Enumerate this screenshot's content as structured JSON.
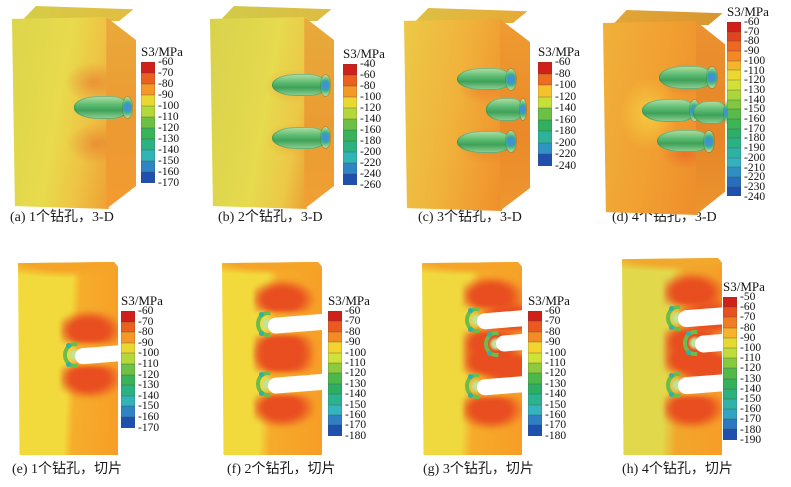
{
  "color_scale_anchors": [
    "#cf2019",
    "#ea5a20",
    "#f58b24",
    "#f5d32f",
    "#cfe238",
    "#8cca3e",
    "#4cb84b",
    "#2daf62",
    "#2bb38f",
    "#33b4c0",
    "#2e7fc4",
    "#2050ae"
  ],
  "chart_data": [
    {
      "id": "a",
      "type": "heatmap",
      "view": "3-D",
      "boreholes": 1,
      "title": "(a) 1个钻孔，3-D",
      "colorbar": {
        "label": "S3/MPa",
        "unit": "MPa",
        "ticks": [
          -60,
          -70,
          -80,
          -90,
          -100,
          -110,
          -120,
          -130,
          -140,
          -150,
          -160,
          -170
        ]
      }
    },
    {
      "id": "b",
      "type": "heatmap",
      "view": "3-D",
      "boreholes": 2,
      "title": "(b) 2个钻孔，3-D",
      "colorbar": {
        "label": "S3/MPa",
        "unit": "MPa",
        "ticks": [
          -40,
          -60,
          -80,
          -100,
          -120,
          -140,
          -160,
          -180,
          -200,
          -220,
          -240,
          -260
        ]
      }
    },
    {
      "id": "c",
      "type": "heatmap",
      "view": "3-D",
      "boreholes": 3,
      "title": "(c) 3个钻孔，3-D",
      "colorbar": {
        "label": "S3/MPa",
        "unit": "MPa",
        "ticks": [
          -60,
          -80,
          -100,
          -120,
          -140,
          -160,
          -180,
          -200,
          -220,
          -240
        ]
      }
    },
    {
      "id": "d",
      "type": "heatmap",
      "view": "3-D",
      "boreholes": 4,
      "title": "(d) 4个钻孔，3-D",
      "colorbar": {
        "label": "S3/MPa",
        "unit": "MPa",
        "ticks": [
          -60,
          -70,
          -80,
          -90,
          -100,
          -110,
          -120,
          -130,
          -140,
          -150,
          -160,
          -170,
          -180,
          -190,
          -200,
          -210,
          -220,
          -230,
          -240
        ]
      }
    },
    {
      "id": "e",
      "type": "heatmap",
      "view": "切片",
      "boreholes": 1,
      "title": "(e) 1个钻孔，切片",
      "colorbar": {
        "label": "S3/MPa",
        "unit": "MPa",
        "ticks": [
          -60,
          -70,
          -80,
          -90,
          -100,
          -110,
          -120,
          -130,
          -140,
          -150,
          -160,
          -170
        ]
      }
    },
    {
      "id": "f",
      "type": "heatmap",
      "view": "切片",
      "boreholes": 2,
      "title": "(f) 2个钻孔，切片",
      "colorbar": {
        "label": "S3/MPa",
        "unit": "MPa",
        "ticks": [
          -60,
          -70,
          -80,
          -90,
          -100,
          -110,
          -120,
          -130,
          -140,
          -150,
          -160,
          -170,
          -180
        ]
      }
    },
    {
      "id": "g",
      "type": "heatmap",
      "view": "切片",
      "boreholes": 3,
      "title": "(g) 3个钻孔，切片",
      "colorbar": {
        "label": "S3/MPa",
        "unit": "MPa",
        "ticks": [
          -60,
          -70,
          -80,
          -90,
          -100,
          -110,
          -120,
          -130,
          -140,
          -150,
          -160,
          -170,
          -180
        ]
      }
    },
    {
      "id": "h",
      "type": "heatmap",
      "view": "切片",
      "boreholes": 4,
      "title": "(h) 4个钻孔，切片",
      "colorbar": {
        "label": "S3/MPa",
        "unit": "MPa",
        "ticks": [
          -50,
          -60,
          -70,
          -80,
          -90,
          -100,
          -110,
          -120,
          -130,
          -140,
          -150,
          -160,
          -170,
          -180,
          -190
        ]
      }
    }
  ]
}
